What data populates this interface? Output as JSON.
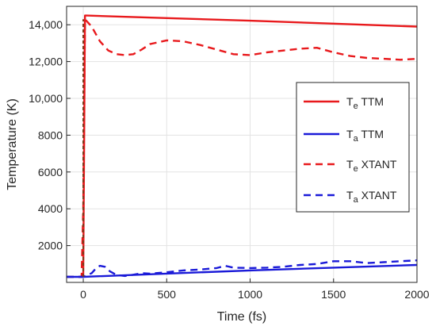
{
  "chart_data": {
    "type": "line",
    "title": "",
    "xlabel": "Time (fs)",
    "ylabel": "Temperature (K)",
    "xlim": [
      -100,
      2000
    ],
    "ylim": [
      0,
      15000
    ],
    "x_ticks": [
      0,
      500,
      1000,
      1500,
      2000
    ],
    "x_tick_labels": [
      "0",
      "500",
      "1000",
      "1500",
      "2000"
    ],
    "y_ticks": [
      2000,
      4000,
      6000,
      8000,
      10000,
      12000,
      14000
    ],
    "y_tick_labels": [
      "2000",
      "4000",
      "6000",
      "8000",
      "10,000",
      "12,000",
      "14,000"
    ],
    "grid": true,
    "legend_position": "right",
    "series": [
      {
        "name": "Te TTM",
        "sub": "e",
        "model": "TTM",
        "color": "#e8191c",
        "dash": "solid",
        "x": [
          0,
          10,
          20,
          500,
          1000,
          1500,
          2000
        ],
        "y": [
          300,
          14500,
          14500,
          14360,
          14220,
          14060,
          13900
        ]
      },
      {
        "name": "Ta TTM",
        "sub": "a",
        "model": "TTM",
        "color": "#1a1ad8",
        "dash": "solid",
        "x": [
          -100,
          0,
          500,
          1000,
          1500,
          2000
        ],
        "y": [
          300,
          300,
          480,
          650,
          800,
          950
        ]
      },
      {
        "name": "Te XTANT",
        "sub": "e",
        "model": "XTANT",
        "color": "#e8191c",
        "dash": "dashed",
        "x": [
          -100,
          -10,
          0,
          10,
          50,
          100,
          150,
          200,
          250,
          300,
          350,
          400,
          500,
          600,
          700,
          800,
          900,
          1000,
          1100,
          1200,
          1300,
          1400,
          1500,
          1600,
          1700,
          1800,
          1900,
          2000
        ],
        "y": [
          300,
          300,
          4000,
          14300,
          13900,
          13100,
          12600,
          12400,
          12350,
          12400,
          12650,
          12950,
          13150,
          13100,
          12900,
          12650,
          12400,
          12350,
          12500,
          12600,
          12700,
          12750,
          12500,
          12300,
          12200,
          12150,
          12100,
          12150
        ]
      },
      {
        "name": "Ta XTANT",
        "sub": "a",
        "model": "XTANT",
        "color": "#1a1ad8",
        "dash": "dashed",
        "x": [
          -100,
          0,
          50,
          80,
          100,
          130,
          160,
          200,
          250,
          300,
          350,
          400,
          500,
          600,
          700,
          800,
          850,
          900,
          1000,
          1100,
          1200,
          1300,
          1400,
          1500,
          1600,
          1700,
          1800,
          1900,
          2000
        ],
        "y": [
          300,
          300,
          500,
          800,
          900,
          850,
          600,
          400,
          350,
          420,
          500,
          480,
          550,
          650,
          700,
          780,
          900,
          800,
          780,
          800,
          850,
          950,
          1000,
          1150,
          1150,
          1050,
          1100,
          1150,
          1200
        ]
      }
    ]
  },
  "colors": {
    "red": "#e8191c",
    "blue": "#1a1ad8",
    "spike": "#7a3a1a"
  }
}
